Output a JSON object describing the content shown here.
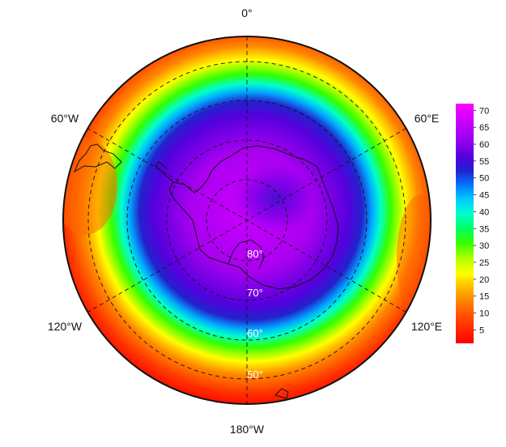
{
  "map": {
    "projection": "south polar stereographic",
    "longitude_labels": [
      "0°",
      "60°E",
      "120°E",
      "180°W",
      "120°W",
      "60°W"
    ],
    "latitude_labels": [
      "80°",
      "70°",
      "60°",
      "50°"
    ],
    "graticule_style": "dashed",
    "coastline": "Antarctica, southern tip of South America",
    "field": "polar-vortex / ozone-hole-like field: high values (violet) over Antarctica, decreasing outward to red at the edges"
  },
  "colorbar": {
    "ticks": [
      "70",
      "65",
      "60",
      "55",
      "50",
      "45",
      "40",
      "35",
      "30",
      "25",
      "20",
      "15",
      "10",
      "5"
    ],
    "min": 1,
    "max": 72,
    "colors": [
      "#ff0000",
      "#ff4400",
      "#ff8800",
      "#ffcc00",
      "#ffff00",
      "#bbff00",
      "#33ff00",
      "#00ff66",
      "#00ffcc",
      "#00ccff",
      "#0077ff",
      "#2222cc",
      "#5500dd",
      "#9900ee",
      "#cc00ff",
      "#ff00ff"
    ]
  }
}
